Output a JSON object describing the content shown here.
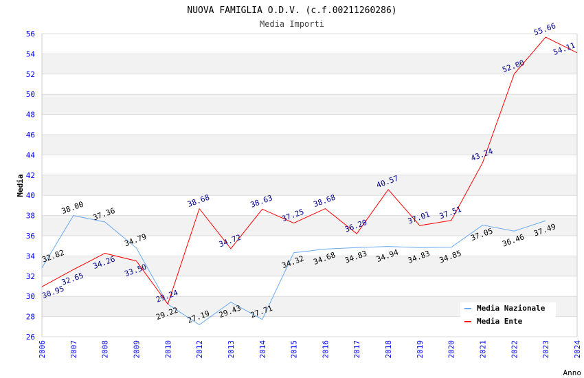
{
  "chart_data": {
    "type": "line",
    "title": "NUOVA FAMIGLIA O.D.V. (c.f.00211260286)",
    "subtitle": "Media Importi",
    "xlabel": "Anno",
    "ylabel": "Media",
    "ylim": [
      26,
      56
    ],
    "yticks": [
      26,
      28,
      30,
      32,
      34,
      36,
      38,
      40,
      42,
      44,
      46,
      48,
      50,
      52,
      54,
      56
    ],
    "categories": [
      "2006",
      "2007",
      "2008",
      "2009",
      "2010",
      "2012",
      "2013",
      "2014",
      "2015",
      "2016",
      "2017",
      "2018",
      "2019",
      "2020",
      "2021",
      "2022",
      "2023",
      "2024"
    ],
    "legend_position": "top-right",
    "series": [
      {
        "name": "Media Nazionale",
        "color": "#6aaaf0",
        "label_color": "#000000",
        "values": [
          32.82,
          38.0,
          37.36,
          34.79,
          29.22,
          27.19,
          29.43,
          27.71,
          34.32,
          34.68,
          34.83,
          34.94,
          34.83,
          34.85,
          37.05,
          36.46,
          37.49,
          null
        ]
      },
      {
        "name": "Media Ente",
        "color": "#ff0000",
        "label_color": "#00008b",
        "values": [
          30.95,
          32.65,
          34.26,
          33.5,
          29.24,
          38.68,
          34.72,
          38.63,
          37.25,
          38.68,
          36.2,
          40.57,
          37.01,
          37.51,
          43.24,
          52.0,
          55.66,
          54.11
        ]
      }
    ]
  }
}
